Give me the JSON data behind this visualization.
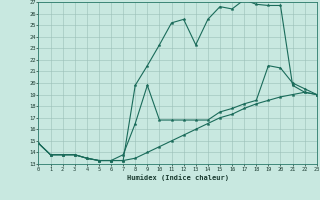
{
  "xlabel": "Humidex (Indice chaleur)",
  "bg_color": "#c8e8e0",
  "line_color": "#1a6b5a",
  "grid_color": "#9bbfb8",
  "x_ticks": [
    0,
    1,
    2,
    3,
    4,
    5,
    6,
    7,
    8,
    9,
    10,
    11,
    12,
    13,
    14,
    15,
    16,
    17,
    18,
    19,
    20,
    21,
    22,
    23
  ],
  "y_ticks": [
    13,
    14,
    15,
    16,
    17,
    18,
    19,
    20,
    21,
    22,
    23,
    24,
    25,
    26,
    27
  ],
  "xlim": [
    0,
    23
  ],
  "ylim": [
    13,
    27
  ],
  "line1_x": [
    0,
    1,
    2,
    3,
    4,
    5,
    6,
    7,
    8,
    9,
    10,
    11,
    12,
    13,
    14,
    15,
    16,
    17,
    18,
    19,
    20,
    21,
    22,
    23
  ],
  "line1_y": [
    14.8,
    13.8,
    13.8,
    13.8,
    13.5,
    13.3,
    13.3,
    13.3,
    19.8,
    21.5,
    23.3,
    25.2,
    25.5,
    23.3,
    25.5,
    26.6,
    26.4,
    27.2,
    26.8,
    26.7,
    26.7,
    19.8,
    19.2,
    19.0
  ],
  "line2_x": [
    0,
    1,
    2,
    3,
    4,
    5,
    6,
    7,
    8,
    9,
    10,
    11,
    12,
    13,
    14,
    15,
    16,
    17,
    18,
    19,
    20,
    21,
    22,
    23
  ],
  "line2_y": [
    14.8,
    13.8,
    13.8,
    13.8,
    13.5,
    13.3,
    13.3,
    13.8,
    16.5,
    19.8,
    16.8,
    16.8,
    16.8,
    16.8,
    16.8,
    17.5,
    17.8,
    18.2,
    18.5,
    21.5,
    21.3,
    20.0,
    19.5,
    19.0
  ],
  "line3_x": [
    0,
    1,
    2,
    3,
    4,
    5,
    6,
    7,
    8,
    9,
    10,
    11,
    12,
    13,
    14,
    15,
    16,
    17,
    18,
    19,
    20,
    21,
    22,
    23
  ],
  "line3_y": [
    14.8,
    13.8,
    13.8,
    13.8,
    13.5,
    13.3,
    13.3,
    13.3,
    13.5,
    14.0,
    14.5,
    15.0,
    15.5,
    16.0,
    16.5,
    17.0,
    17.3,
    17.8,
    18.2,
    18.5,
    18.8,
    19.0,
    19.2,
    19.0
  ]
}
